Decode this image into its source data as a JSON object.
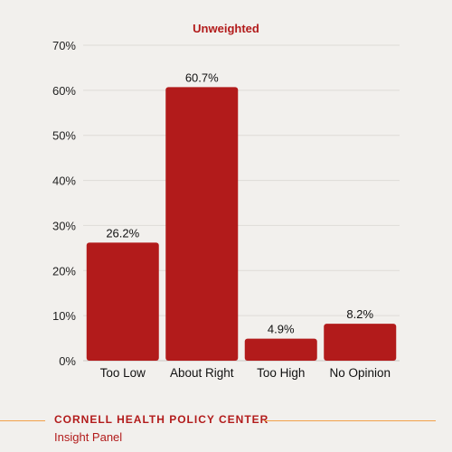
{
  "chart_data": {
    "type": "bar",
    "title": "Unweighted",
    "categories": [
      "Too Low",
      "About Right",
      "Too High",
      "No Opinion"
    ],
    "values": [
      26.2,
      60.7,
      4.9,
      8.2
    ],
    "data_labels": [
      "26.2%",
      "60.7%",
      "4.9%",
      "8.2%"
    ],
    "ylim": [
      0,
      70
    ],
    "yticks": [
      0,
      10,
      20,
      30,
      40,
      50,
      60,
      70
    ],
    "ytick_labels": [
      "0%",
      "10%",
      "20%",
      "30%",
      "40%",
      "50%",
      "60%",
      "70%"
    ],
    "xlabel": "",
    "ylabel": "",
    "grid": true,
    "bar_color": "#b21b1b",
    "title_color": "#b21b1b"
  },
  "footer": {
    "org": "CORNELL HEALTH POLICY CENTER",
    "sub": "Insight Panel",
    "rule_color": "#f2a14a"
  }
}
